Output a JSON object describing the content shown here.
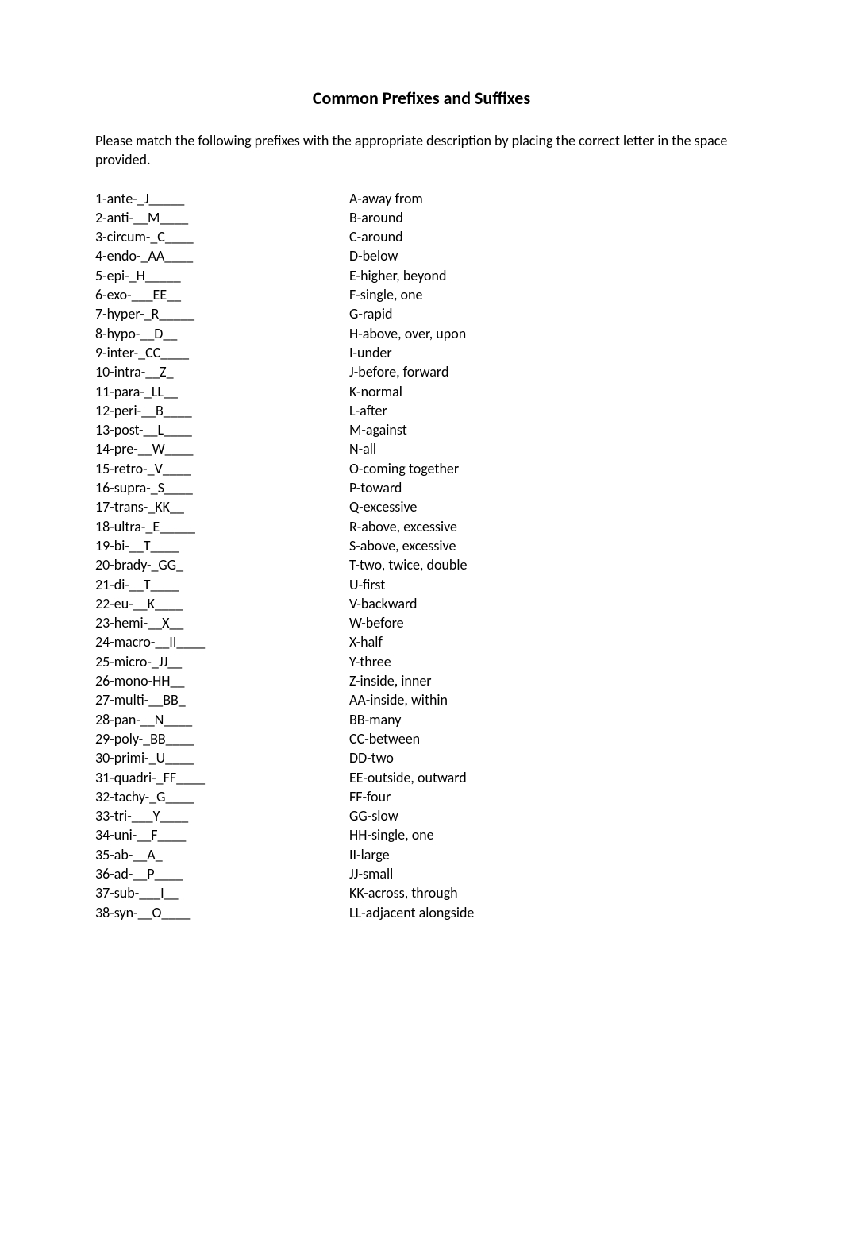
{
  "title_part1": "Common Pre",
  "title_fi1": "fi",
  "title_part2": "xes and Su",
  "title_fi2": "ffi",
  "title_part3": "xes",
  "instructions": "Please match the following prefixes with the appropriate description by placing the correct letter in the space provided.",
  "left": [
    "1-ante-_J_____",
    "2-anti-__M____",
    "3-circum-_C____",
    "4-endo-_AA____",
    "5-epi-_H_____",
    "6-exo-___EE__",
    "7-hyper-_R_____",
    "8-hypo-__D__",
    "9-inter-_CC____",
    "10-intra-__Z_",
    "11-para-_LL__",
    "12-peri-__B____",
    "13-post-__L____",
    "14-pre-__W____",
    "15-retro-_V____",
    "16-supra-_S____",
    "17-trans-_KK__",
    "18-ultra-_E_____",
    "19-bi-__T____",
    "20-brady-_GG_",
    "21-di-__T____",
    "22-eu-__K____",
    "23-hemi-__X__",
    "24-macro-__II____",
    "25-micro-_JJ__",
    "26-mono-HH__",
    "27-multi-__BB_",
    "28-pan-__N____",
    "29-poly-_BB____",
    "30-primi-_U____",
    "31-quadri-_FF____",
    "32-tachy-_G____",
    "33-tri-___Y____",
    "34-uni-__F____",
    "35-ab-__A_",
    "36-ad-__P____",
    "37-sub-___I__",
    "38-syn-__O____"
  ],
  "right": [
    "A-away from",
    "B-around",
    "C-around",
    "D-below",
    "E-higher, beyond",
    "F-single, one",
    "G-rapid",
    "H-above, over, upon",
    "I-under",
    "J-before, forward",
    "K-normal",
    "L-after",
    "M-against",
    "N-all",
    "O-coming together",
    "P-toward",
    "Q-excessive",
    "R-above, excessive",
    "S-above, excessive",
    "T-two, twice, double",
    "U-first",
    "V-backward",
    "W-before",
    "X-half",
    "Y-three",
    "Z-inside, inner",
    "AA-inside, within",
    "BB-many",
    "CC-between",
    "DD-two",
    "EE-outside, outward",
    "FF-four",
    "GG-slow",
    "HH-single, one",
    "II-large",
    "JJ-small",
    "KK-across, through",
    "LL-adjacent alongside"
  ]
}
